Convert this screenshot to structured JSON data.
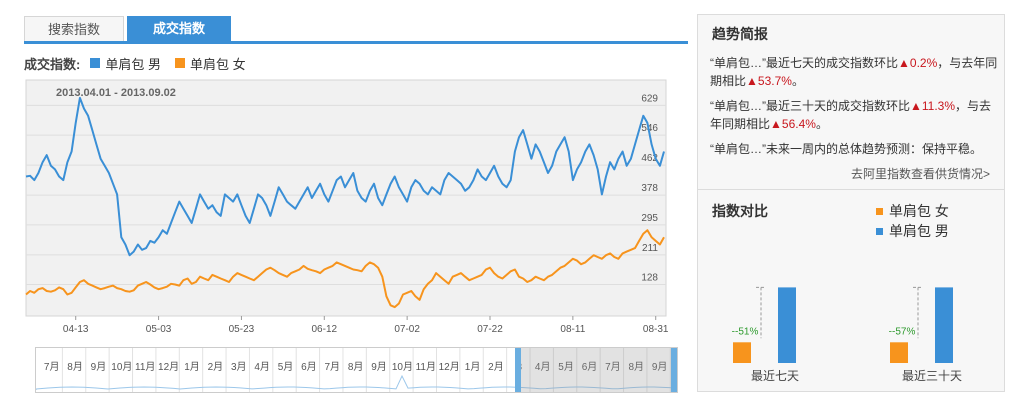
{
  "tabs": [
    {
      "label": "搜索指数",
      "active": false
    },
    {
      "label": "成交指数",
      "active": true
    }
  ],
  "legend": {
    "title": "成交指数:",
    "items": [
      {
        "label": "单肩包 男",
        "color": "#3a8fd6"
      },
      {
        "label": "单肩包 女",
        "color": "#f7941d"
      }
    ]
  },
  "chart_data": {
    "type": "line",
    "date_range": "2013.04.01 - 2013.09.02",
    "y_ticks": [
      128,
      211,
      295,
      378,
      462,
      546,
      629
    ],
    "ylim": [
      40,
      700
    ],
    "x_ticks": [
      "04-13",
      "05-03",
      "05-23",
      "06-12",
      "07-02",
      "07-22",
      "08-11",
      "08-31"
    ],
    "x_tick_index": [
      12,
      32,
      52,
      72,
      92,
      112,
      132,
      152
    ],
    "grid": true,
    "series": [
      {
        "name": "单肩包 男",
        "color": "#3a8fd6",
        "values": [
          430,
          432,
          420,
          440,
          470,
          490,
          460,
          450,
          430,
          420,
          470,
          500,
          580,
          650,
          620,
          600,
          560,
          520,
          480,
          460,
          440,
          410,
          380,
          260,
          240,
          210,
          220,
          240,
          225,
          230,
          250,
          245,
          260,
          280,
          270,
          300,
          330,
          360,
          340,
          320,
          300,
          340,
          380,
          360,
          340,
          350,
          330,
          320,
          380,
          370,
          360,
          380,
          350,
          320,
          300,
          340,
          380,
          370,
          350,
          320,
          360,
          400,
          380,
          360,
          350,
          340,
          360,
          380,
          400,
          370,
          390,
          410,
          380,
          360,
          390,
          420,
          430,
          400,
          420,
          440,
          390,
          370,
          360,
          390,
          410,
          370,
          350,
          380,
          410,
          430,
          400,
          380,
          360,
          400,
          420,
          410,
          390,
          380,
          400,
          390,
          380,
          420,
          440,
          430,
          420,
          410,
          390,
          400,
          420,
          450,
          430,
          420,
          440,
          460,
          430,
          410,
          400,
          420,
          500,
          540,
          560,
          520,
          480,
          520,
          500,
          470,
          440,
          460,
          500,
          520,
          540,
          500,
          420,
          450,
          470,
          500,
          520,
          490,
          450,
          380,
          430,
          470,
          450,
          480,
          500,
          460,
          480,
          520,
          560,
          600,
          580,
          520,
          480,
          460,
          500
        ]
      },
      {
        "name": "单肩包 女",
        "color": "#f7941d",
        "values": [
          100,
          110,
          105,
          115,
          118,
          110,
          108,
          112,
          120,
          115,
          100,
          105,
          120,
          135,
          140,
          130,
          125,
          120,
          115,
          118,
          122,
          125,
          118,
          115,
          110,
          108,
          112,
          125,
          130,
          135,
          128,
          120,
          115,
          118,
          122,
          130,
          128,
          125,
          140,
          145,
          130,
          135,
          150,
          145,
          140,
          155,
          150,
          145,
          140,
          135,
          150,
          160,
          155,
          150,
          145,
          140,
          150,
          160,
          170,
          175,
          168,
          160,
          155,
          150,
          160,
          165,
          170,
          180,
          172,
          168,
          165,
          160,
          170,
          175,
          180,
          190,
          185,
          180,
          175,
          170,
          168,
          165,
          180,
          190,
          185,
          175,
          150,
          95,
          70,
          65,
          75,
          100,
          105,
          110,
          95,
          85,
          115,
          130,
          140,
          160,
          150,
          140,
          130,
          150,
          155,
          160,
          150,
          140,
          145,
          150,
          155,
          170,
          175,
          160,
          150,
          145,
          155,
          165,
          170,
          150,
          145,
          135,
          140,
          150,
          145,
          140,
          150,
          155,
          165,
          175,
          180,
          190,
          200,
          195,
          185,
          190,
          200,
          210,
          205,
          200,
          210,
          215,
          205,
          200,
          215,
          220,
          225,
          230,
          250,
          270,
          280,
          260,
          250,
          240,
          260
        ]
      }
    ]
  },
  "slider": {
    "months": [
      "7月",
      "8月",
      "9月",
      "10月",
      "11月",
      "12月",
      "1月",
      "2月",
      "3月",
      "4月",
      "5月",
      "6月",
      "7月",
      "8月",
      "9月",
      "10月",
      "11月",
      "12月",
      "1月",
      "2月",
      "3",
      "4月",
      "5月",
      "6月",
      "7月",
      "8月",
      "9月"
    ]
  },
  "trend": {
    "title": "趋势简报",
    "line1": {
      "pre": "“单肩包…”最近七天的成交指数环比",
      "val1": "0.2%",
      "mid": "，与去年同期相比",
      "val2": "53.7%",
      "post": "。"
    },
    "line2": {
      "pre": "“单肩包…”最近三十天的成交指数环比",
      "val1": "11.3%",
      "mid": "，与去年同期相比",
      "val2": "56.4%",
      "post": "。"
    },
    "line3": "“单肩包…”未来一周内的总体趋势预测：保持平稳。",
    "link": "去阿里指数查看供货情况>"
  },
  "compare": {
    "title": "指数对比",
    "legend": [
      {
        "label": "单肩包 女",
        "color": "#f7941d"
      },
      {
        "label": "单肩包 男",
        "color": "#3a8fd6"
      }
    ],
    "groups": [
      {
        "label": "最近七天",
        "diff": "--51%",
        "female": 0.23,
        "male": 0.84
      },
      {
        "label": "最近三十天",
        "diff": "--57%",
        "female": 0.23,
        "male": 0.84
      }
    ]
  }
}
